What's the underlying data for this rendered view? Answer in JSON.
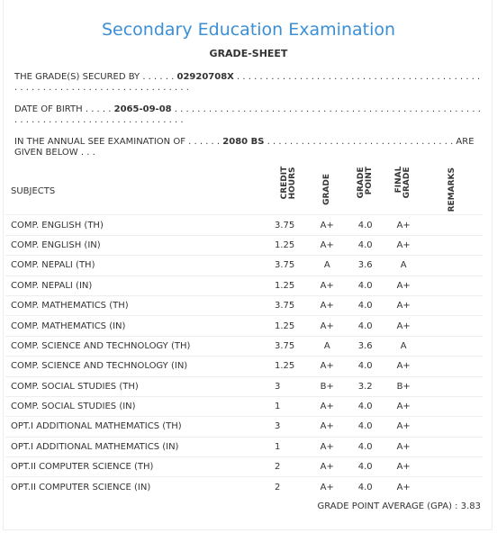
{
  "header": {
    "title": "Secondary Education Examination",
    "subtitle": "GRADE-SHEET"
  },
  "details": [
    {
      "label": "THE GRADE(S) SECURED BY . . . . . .",
      "value": "02920708X",
      "trail": ". . . . . . . . . . . . . . . . . . . . . . . . . . . . . . . . . . . . . . . . . . . . . . . . . . . . . . . . . . . . . . . . . . . . . . . . . ."
    },
    {
      "label": "DATE OF BIRTH . . . . .",
      "value": "2065-09-08",
      "trail": ". . . . . . . . . . . . . . . . . . . . . . . . . . . . . . . . . . . . . . . . . . . . . . . . . . . . . . . . . . . . . . . . . . . . . . . . . . . . . . . . . . . ."
    },
    {
      "label": "IN THE ANNUAL SEE EXAMINATION OF . . . . . .",
      "value": "2080 BS",
      "trail": ". . . . . . . . . . . . . . . . . . . . . . . . . . . . . . . . . ARE GIVEN BELOW . . ."
    }
  ],
  "table": {
    "columns": [
      "SUBJECTS",
      "CREDIT HOURS",
      "GRADE",
      "GRADE POINT",
      "FINAL GRADE",
      "REMARKS"
    ],
    "rows": [
      [
        "COMP. ENGLISH (TH)",
        "3.75",
        "A+",
        "4.0",
        "A+"
      ],
      [
        "COMP. ENGLISH (IN)",
        "1.25",
        "A+",
        "4.0",
        "A+"
      ],
      [
        "COMP. NEPALI (TH)",
        "3.75",
        "A",
        "3.6",
        "A"
      ],
      [
        "COMP. NEPALI (IN)",
        "1.25",
        "A+",
        "4.0",
        "A+"
      ],
      [
        "COMP. MATHEMATICS (TH)",
        "3.75",
        "A+",
        "4.0",
        "A+"
      ],
      [
        "COMP. MATHEMATICS (IN)",
        "1.25",
        "A+",
        "4.0",
        "A+"
      ],
      [
        "COMP. SCIENCE AND TECHNOLOGY (TH)",
        "3.75",
        "A",
        "3.6",
        "A"
      ],
      [
        "COMP. SCIENCE AND TECHNOLOGY (IN)",
        "1.25",
        "A+",
        "4.0",
        "A+"
      ],
      [
        "COMP. SOCIAL STUDIES (TH)",
        "3",
        "B+",
        "3.2",
        "B+"
      ],
      [
        "COMP. SOCIAL STUDIES (IN)",
        "1",
        "A+",
        "4.0",
        "A+"
      ],
      [
        "OPT.I ADDITIONAL MATHEMATICS (TH)",
        "3",
        "A+",
        "4.0",
        "A+"
      ],
      [
        "OPT.I ADDITIONAL MATHEMATICS (IN)",
        "1",
        "A+",
        "4.0",
        "A+"
      ],
      [
        "OPT.II COMPUTER SCIENCE (TH)",
        "2",
        "A+",
        "4.0",
        "A+"
      ],
      [
        "OPT.II COMPUTER SCIENCE (IN)",
        "2",
        "A+",
        "4.0",
        "A+"
      ]
    ]
  },
  "footer": {
    "label": "GRADE POINT AVERAGE (GPA) :",
    "value": "3.83"
  }
}
